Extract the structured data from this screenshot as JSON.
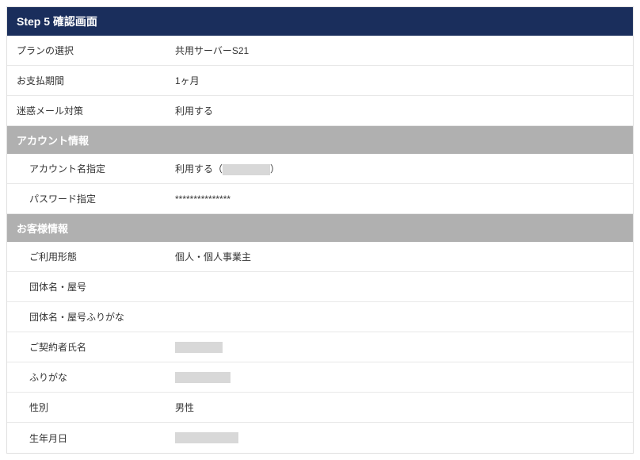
{
  "header": {
    "title": "Step 5 確認画面"
  },
  "sections": {
    "plan": {
      "rows": [
        {
          "label": "プランの選択",
          "value": "共用サーバーS21"
        },
        {
          "label": "お支払期間",
          "value": "1ヶ月"
        },
        {
          "label": "迷惑メール対策",
          "value": "利用する"
        }
      ]
    },
    "account": {
      "title": "アカウント情報",
      "rows": [
        {
          "label": "アカウント名指定",
          "value_prefix": "利用する（",
          "value_suffix": "）",
          "redacted_width": "w60"
        },
        {
          "label": "パスワード指定",
          "value": "***************"
        }
      ]
    },
    "customer": {
      "title": "お客様情報",
      "rows": [
        {
          "label": "ご利用形態",
          "value": "個人・個人事業主"
        },
        {
          "label": "団体名・屋号",
          "value": ""
        },
        {
          "label": "団体名・屋号ふりがな",
          "value": ""
        },
        {
          "label": "ご契約者氏名",
          "redacted": true,
          "redacted_width": "w60"
        },
        {
          "label": "ふりがな",
          "redacted": true,
          "redacted_width": "w70"
        },
        {
          "label": "性別",
          "value": "男性"
        },
        {
          "label": "生年月日",
          "redacted": true,
          "redacted_width": "w80"
        }
      ]
    }
  },
  "colors": {
    "header_bg": "#1a2e5c",
    "section_bg": "#b0b0b0",
    "border": "#e8e8e8",
    "text": "#333333",
    "redacted_bg": "#d8d8d8"
  }
}
